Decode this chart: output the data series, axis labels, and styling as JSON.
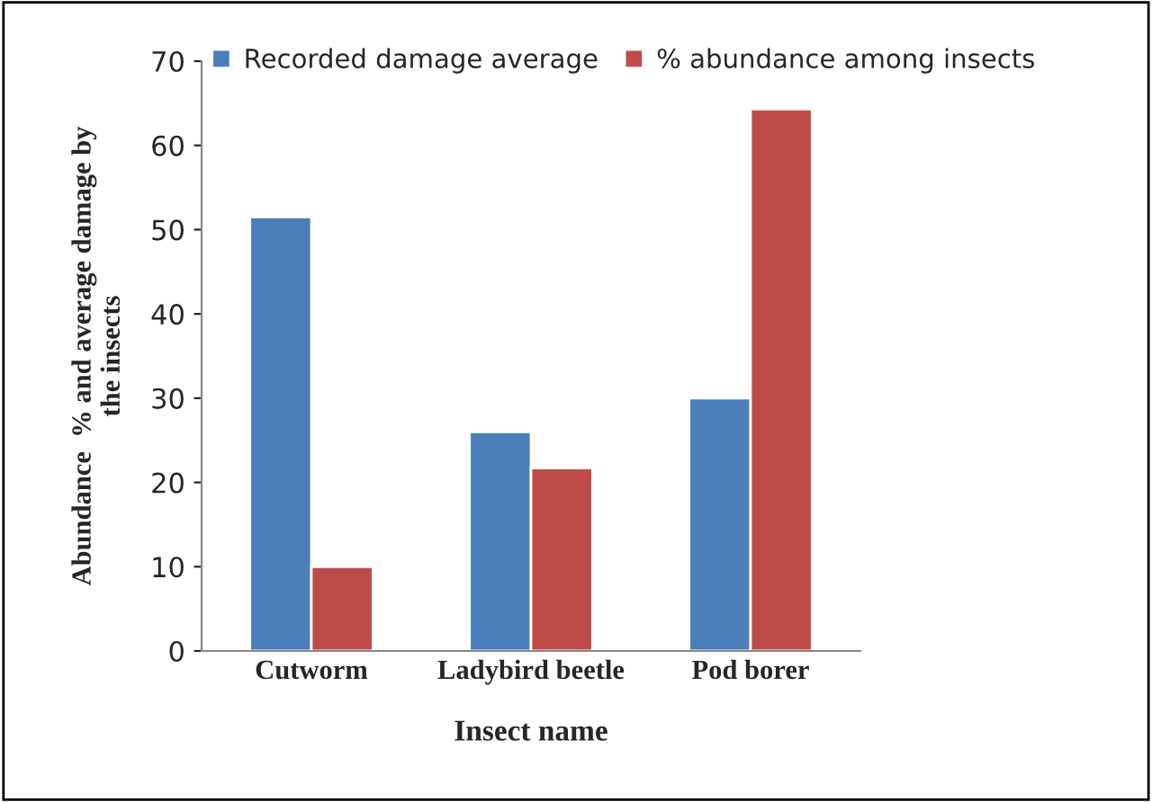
{
  "chart_data": {
    "type": "bar",
    "xlabel": "Insect name",
    "ylabel": "Abundance  % and average damage by\nthe insects",
    "categories": [
      "Cutworm",
      "Ladybird beetle",
      "Pod borer"
    ],
    "series": [
      {
        "name": "Recorded damage average",
        "color": "#4a7ebb",
        "values": [
          51.5,
          26,
          30
        ]
      },
      {
        "name": "% abundance among insects",
        "color": "#be4b48",
        "values": [
          10,
          21.7,
          64.3
        ]
      }
    ],
    "ylim": [
      0,
      70
    ],
    "yticks": [
      0,
      10,
      20,
      30,
      40,
      50,
      60,
      70
    ],
    "grid": false,
    "legend": "top"
  }
}
